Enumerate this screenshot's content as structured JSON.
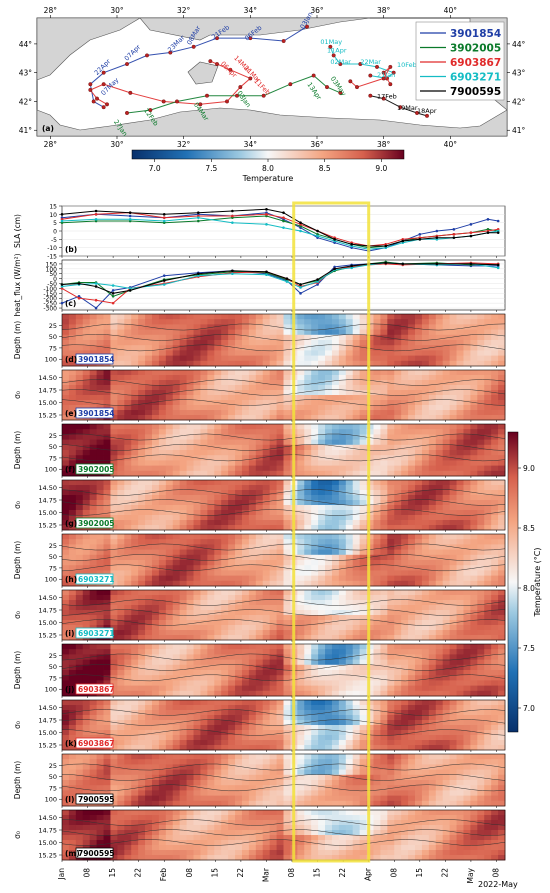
{
  "map": {
    "panel_label": "(a)",
    "lon_ticks": [
      "28°",
      "30°",
      "32°",
      "34°",
      "36°",
      "38°",
      "40°"
    ],
    "lat_ticks": [
      "44°",
      "43°",
      "42°",
      "41°"
    ],
    "legend": [
      {
        "id": "3901854",
        "color": "#1f3ea6"
      },
      {
        "id": "3902005",
        "color": "#0a7a2a"
      },
      {
        "id": "6903867",
        "color": "#e02a2a"
      },
      {
        "id": "6903271",
        "color": "#14bcc4"
      },
      {
        "id": "7900595",
        "color": "#000000"
      }
    ],
    "annotations": [
      {
        "text": "03Jan",
        "color": "#1f3ea6",
        "lon": 35.6,
        "lat": 44.5,
        "rot": 60
      },
      {
        "text": "06Feb",
        "color": "#1f3ea6",
        "lon": 33.9,
        "lat": 44.1,
        "rot": 40
      },
      {
        "text": "21Feb",
        "color": "#1f3ea6",
        "lon": 32.9,
        "lat": 44.15,
        "rot": 35
      },
      {
        "text": "08Mar",
        "color": "#1f3ea6",
        "lon": 32.2,
        "lat": 43.95,
        "rot": 60
      },
      {
        "text": "23Mar",
        "color": "#1f3ea6",
        "lon": 31.6,
        "lat": 43.7,
        "rot": 45
      },
      {
        "text": "07Apr",
        "color": "#1f3ea6",
        "lon": 30.3,
        "lat": 43.4,
        "rot": 45
      },
      {
        "text": "22Apr",
        "color": "#1f3ea6",
        "lon": 29.4,
        "lat": 42.9,
        "rot": 45
      },
      {
        "text": "07May",
        "color": "#1f3ea6",
        "lon": 29.6,
        "lat": 42.2,
        "rot": 45
      },
      {
        "text": "01May",
        "color": "#14bcc4",
        "lon": 36.1,
        "lat": 44.0,
        "rot": 0
      },
      {
        "text": "11Apr",
        "color": "#14bcc4",
        "lon": 36.3,
        "lat": 43.7,
        "rot": 0
      },
      {
        "text": "02Mar",
        "color": "#14bcc4",
        "lon": 36.4,
        "lat": 43.3,
        "rot": 0
      },
      {
        "text": "22Mar",
        "color": "#14bcc4",
        "lon": 37.3,
        "lat": 43.3,
        "rot": 0
      },
      {
        "text": "10Feb",
        "color": "#14bcc4",
        "lon": 38.4,
        "lat": 43.2,
        "rot": 0
      },
      {
        "text": "21Jan",
        "color": "#14bcc4",
        "lon": 37.8,
        "lat": 42.85,
        "rot": 0
      },
      {
        "text": "06Apr",
        "color": "#e02a2a",
        "lon": 33.1,
        "lat": 43.3,
        "rot": -45
      },
      {
        "text": "21Mar",
        "color": "#e02a2a",
        "lon": 33.8,
        "lat": 43.15,
        "rot": -45
      },
      {
        "text": "11Feb",
        "color": "#e02a2a",
        "lon": 34.1,
        "lat": 42.7,
        "rot": -45
      },
      {
        "text": "14Mar",
        "color": "#e02a2a",
        "lon": 33.5,
        "lat": 43.5,
        "rot": -45
      },
      {
        "text": "13Apr",
        "color": "#0a7a2a",
        "lon": 35.7,
        "lat": 42.6,
        "rot": -55
      },
      {
        "text": "03May",
        "color": "#0a7a2a",
        "lon": 36.4,
        "lat": 42.8,
        "rot": -55
      },
      {
        "text": "03Jan",
        "color": "#0a7a2a",
        "lon": 33.6,
        "lat": 42.3,
        "rot": -55
      },
      {
        "text": "04Mar",
        "color": "#0a7a2a",
        "lon": 32.3,
        "lat": 41.9,
        "rot": -55
      },
      {
        "text": "12Feb",
        "color": "#0a7a2a",
        "lon": 30.8,
        "lat": 41.7,
        "rot": -55
      },
      {
        "text": "27Jan",
        "color": "#0a7a2a",
        "lon": 29.9,
        "lat": 41.3,
        "rot": -55
      },
      {
        "text": "17Feb",
        "color": "#000000",
        "lon": 37.8,
        "lat": 42.1,
        "rot": 0
      },
      {
        "text": "19Mar",
        "color": "#000000",
        "lon": 38.4,
        "lat": 41.7,
        "rot": 0
      },
      {
        "text": "18Apr",
        "color": "#000000",
        "lon": 39.0,
        "lat": 41.6,
        "rot": 0
      }
    ],
    "colorbar": {
      "label": "Temperature",
      "ticks": [
        "7.0",
        "7.5",
        "8.0",
        "8.5",
        "9.0"
      ],
      "min": 6.8,
      "max": 9.2
    }
  },
  "chart_data": {
    "type": "line",
    "x_ticks": [
      "Jan",
      "08",
      "15",
      "22",
      "Feb",
      "08",
      "15",
      "22",
      "Mar",
      "08",
      "15",
      "22",
      "Apr",
      "08",
      "15",
      "22",
      "May",
      "08"
    ],
    "x_footer": "2022-May",
    "highlight_window": {
      "from_day": 68,
      "to_day": 90
    },
    "panels": [
      {
        "id": "b",
        "label": "(b)",
        "ylabel": "SLA (cm)",
        "yticks": [
          "15",
          "10",
          "5",
          "0",
          "-5",
          "-10",
          "-15"
        ],
        "ylim": [
          -15,
          15
        ],
        "series": [
          {
            "name": "3901854",
            "color": "#1f3ea6",
            "days": [
              0,
              10,
              20,
              30,
              40,
              50,
              60,
              65,
              70,
              75,
              80,
              85,
              90,
              95,
              100,
              105,
              110,
              115,
              120,
              125,
              128
            ],
            "values": [
              8,
              10,
              9,
              8,
              10,
              9,
              11,
              7,
              2,
              -4,
              -7,
              -10,
              -12,
              -10,
              -6,
              -2,
              0,
              1,
              4,
              7,
              6
            ]
          },
          {
            "name": "3902005",
            "color": "#0a7a2a",
            "days": [
              0,
              10,
              20,
              30,
              40,
              50,
              60,
              65,
              70,
              75,
              80,
              85,
              90,
              95,
              100,
              105,
              110,
              115,
              120,
              125,
              128
            ],
            "values": [
              5,
              6,
              6,
              5,
              6,
              8,
              9,
              6,
              3,
              -2,
              -5,
              -8,
              -10,
              -9,
              -6,
              -4,
              -3,
              -2,
              -1,
              1,
              0
            ]
          },
          {
            "name": "6903867",
            "color": "#e02a2a",
            "days": [
              0,
              10,
              20,
              30,
              40,
              50,
              60,
              65,
              70,
              75,
              80,
              85,
              90,
              95,
              100,
              105,
              110,
              115,
              120,
              125,
              128
            ],
            "values": [
              7,
              10,
              11,
              8,
              9,
              9,
              10,
              8,
              4,
              0,
              -4,
              -7,
              -9,
              -8,
              -5,
              -4,
              -3,
              -2,
              -1,
              0,
              1
            ]
          },
          {
            "name": "6903271",
            "color": "#14bcc4",
            "days": [
              0,
              10,
              20,
              30,
              40,
              50,
              60,
              65,
              70,
              75,
              80,
              85,
              90,
              95,
              100,
              105,
              110,
              115,
              120,
              125,
              128
            ],
            "values": [
              6,
              7,
              7,
              6,
              8,
              5,
              4,
              2,
              0,
              -3,
              -6,
              -9,
              -11,
              -10,
              -7,
              -5,
              -5,
              -4,
              -3,
              -1,
              0
            ]
          },
          {
            "name": "7900595",
            "color": "#000000",
            "days": [
              0,
              10,
              20,
              30,
              40,
              50,
              60,
              65,
              70,
              75,
              80,
              85,
              90,
              95,
              100,
              105,
              110,
              115,
              120,
              125,
              128
            ],
            "values": [
              10,
              12,
              11,
              10,
              11,
              12,
              13,
              11,
              5,
              0,
              -5,
              -8,
              -9,
              -9,
              -6,
              -5,
              -4,
              -4,
              -3,
              -1,
              -1
            ]
          }
        ]
      },
      {
        "id": "c",
        "label": "(c)",
        "ylabel": "heat_flux (W/m²)",
        "yticks": [
          "150",
          "100",
          "50",
          "0",
          "-50",
          "-100",
          "-150",
          "-200",
          "-250",
          "-300"
        ],
        "ylim": [
          -320,
          190
        ],
        "series": [
          {
            "name": "3901854",
            "color": "#1f3ea6",
            "days": [
              0,
              5,
              10,
              15,
              20,
              30,
              40,
              50,
              60,
              66,
              70,
              75,
              80,
              85,
              90,
              95,
              100,
              110,
              120,
              128
            ],
            "values": [
              -250,
              -180,
              -300,
              -120,
              -90,
              30,
              60,
              80,
              50,
              -20,
              -150,
              -60,
              120,
              140,
              150,
              160,
              150,
              140,
              130,
              130
            ]
          },
          {
            "name": "3902005",
            "color": "#0a7a2a",
            "days": [
              0,
              5,
              10,
              15,
              20,
              30,
              40,
              50,
              60,
              66,
              70,
              75,
              80,
              85,
              90,
              95,
              100,
              110,
              120,
              128
            ],
            "values": [
              -60,
              -40,
              -40,
              -180,
              -120,
              -10,
              40,
              70,
              60,
              -10,
              -60,
              -20,
              80,
              120,
              150,
              170,
              150,
              160,
              140,
              150
            ]
          },
          {
            "name": "6903867",
            "color": "#e02a2a",
            "days": [
              0,
              5,
              10,
              15,
              20,
              30,
              40,
              50,
              60,
              66,
              70,
              75,
              80,
              85,
              90,
              95,
              100,
              110,
              120,
              128
            ],
            "values": [
              -100,
              -200,
              -220,
              -250,
              -100,
              -50,
              20,
              60,
              70,
              0,
              -80,
              -40,
              100,
              120,
              140,
              150,
              140,
              150,
              160,
              150
            ]
          },
          {
            "name": "6903271",
            "color": "#14bcc4",
            "days": [
              0,
              5,
              10,
              15,
              20,
              30,
              40,
              50,
              60,
              66,
              70,
              75,
              80,
              85,
              90,
              95,
              100,
              110,
              120,
              128
            ],
            "values": [
              -80,
              -60,
              -50,
              -70,
              -100,
              -60,
              30,
              50,
              40,
              -30,
              -90,
              -30,
              90,
              110,
              140,
              160,
              150,
              140,
              150,
              110
            ]
          },
          {
            "name": "7900595",
            "color": "#000000",
            "days": [
              0,
              5,
              10,
              15,
              20,
              30,
              40,
              50,
              60,
              66,
              70,
              75,
              80,
              85,
              90,
              95,
              100,
              110,
              120,
              128
            ],
            "values": [
              -60,
              -50,
              -80,
              -150,
              -120,
              -20,
              50,
              80,
              70,
              0,
              -60,
              -10,
              100,
              130,
              150,
              160,
              150,
              150,
              150,
              140
            ]
          }
        ]
      },
      {
        "id": "d",
        "label": "(d)",
        "tag": "3901854",
        "tag_color": "#1f3ea6",
        "kind": "depth"
      },
      {
        "id": "e",
        "label": "(e)",
        "tag": "3901854",
        "tag_color": "#1f3ea6",
        "kind": "sigma"
      },
      {
        "id": "f",
        "label": "(f)",
        "tag": "3902005",
        "tag_color": "#0a7a2a",
        "kind": "depth"
      },
      {
        "id": "g",
        "label": "(g)",
        "tag": "3902005",
        "tag_color": "#0a7a2a",
        "kind": "sigma"
      },
      {
        "id": "h",
        "label": "(h)",
        "tag": "6903271",
        "tag_color": "#14bcc4",
        "kind": "depth"
      },
      {
        "id": "i",
        "label": "(i)",
        "tag": "6903271",
        "tag_color": "#14bcc4",
        "kind": "sigma"
      },
      {
        "id": "j",
        "label": "(j)",
        "tag": "6903867",
        "tag_color": "#e02a2a",
        "kind": "depth"
      },
      {
        "id": "k",
        "label": "(k)",
        "tag": "6903867",
        "tag_color": "#e02a2a",
        "kind": "sigma"
      },
      {
        "id": "l",
        "label": "(l)",
        "tag": "7900595",
        "tag_color": "#000000",
        "kind": "depth"
      },
      {
        "id": "m",
        "label": "(m)",
        "tag": "7900595",
        "tag_color": "#000000",
        "kind": "sigma"
      }
    ],
    "depth_ylabel": "Depth (m)",
    "depth_ticks": [
      "25",
      "50",
      "75",
      "100"
    ],
    "sigma_ylabel": "σ₀",
    "sigma_ticks": [
      "14.50",
      "14.75",
      "15.00",
      "15.25"
    ],
    "colorbar": {
      "label": "Temperature (°C)",
      "ticks": [
        "9.0",
        "8.5",
        "8.0",
        "7.5",
        "7.0"
      ],
      "min": 6.8,
      "max": 9.3
    }
  }
}
